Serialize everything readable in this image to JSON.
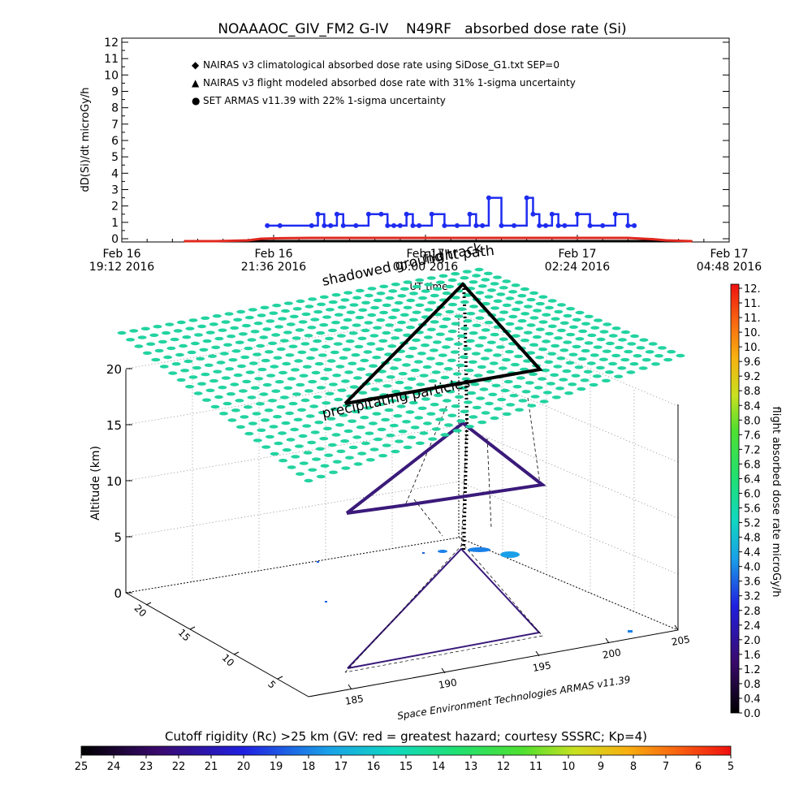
{
  "title": "NOAAAOC_GIV_FM2 G-IV    N49RF   absorbed dose rate (Si)",
  "top_chart": {
    "type": "line",
    "ylabel": "dD(Si)/dt microGy/h",
    "xlabel": "UT time",
    "ylim": [
      0,
      12
    ],
    "yticks": [
      "0",
      "1",
      "2",
      "3",
      "4",
      "5",
      "6",
      "7",
      "8",
      "9",
      "10",
      "11",
      "12"
    ],
    "xticks": [
      {
        "line1": "Feb 16",
        "line2": "19:12 2016"
      },
      {
        "line1": "Feb 16",
        "line2": "21:36 2016"
      },
      {
        "line1": "Feb 17",
        "line2": "00:00 2016"
      },
      {
        "line1": "Feb 17",
        "line2": "02:24 2016"
      },
      {
        "line1": "Feb 17",
        "line2": "04:48 2016"
      }
    ],
    "legend": [
      {
        "marker": "◆",
        "color": "#e0281e",
        "label": "NAIRAS v3 climatological absorbed dose rate using SiDose_G1.txt SEP=0"
      },
      {
        "marker": "▲",
        "color": "#000000",
        "label": "NAIRAS v3 flight modeled absorbed dose rate with 31% 1-sigma uncertainty"
      },
      {
        "marker": "●",
        "color": "#1e2cf0",
        "label": "SET ARMAS v11.39 with 22% 1-sigma uncertainty"
      }
    ]
  },
  "chart_data": [
    {
      "type": "line",
      "title": "NOAAAOC_GIV_FM2 G-IV    N49RF   absorbed dose rate (Si)",
      "xlabel": "UT time",
      "ylabel": "dD(Si)/dt microGy/h",
      "x_unit": "hours after Feb 16 19:12 2016",
      "xlim": [
        0,
        9.6
      ],
      "ylim": [
        0,
        12
      ],
      "grid": false,
      "legend_position": "top-left",
      "series": [
        {
          "name": "SET ARMAS v11.39 with 22% 1-sigma uncertainty",
          "x": [
            2.3,
            2.5,
            3.0,
            3.1,
            3.2,
            3.3,
            3.4,
            3.5,
            3.7,
            3.9,
            4.1,
            4.2,
            4.3,
            4.4,
            4.5,
            4.6,
            4.7,
            4.9,
            5.1,
            5.3,
            5.5,
            5.6,
            5.7,
            5.8,
            6.0,
            6.2,
            6.4,
            6.5,
            6.6,
            6.7,
            6.8,
            6.9,
            7.0,
            7.2,
            7.4,
            7.6,
            7.8,
            8.0,
            8.1
          ],
          "values": [
            0.8,
            0.8,
            0.8,
            1.5,
            0.8,
            0.8,
            1.5,
            0.8,
            0.8,
            1.5,
            1.5,
            0.8,
            0.8,
            0.8,
            1.5,
            0.8,
            0.8,
            1.5,
            0.8,
            0.8,
            1.5,
            0.8,
            0.8,
            2.5,
            0.8,
            0.8,
            2.5,
            1.5,
            0.8,
            0.8,
            1.5,
            0.8,
            0.8,
            1.5,
            0.8,
            0.8,
            1.5,
            0.8,
            0.8
          ]
        },
        {
          "name": "NAIRAS v3 climatological absorbed dose rate using SiDose_G1.txt SEP=0",
          "x": [
            1.0,
            1.5,
            2.0,
            2.2,
            2.5,
            3.0,
            4.0,
            5.0,
            6.0,
            7.0,
            8.0,
            8.4,
            8.6,
            9.0
          ],
          "values": [
            0,
            0,
            0.05,
            0.15,
            0.18,
            0.2,
            0.2,
            0.2,
            0.2,
            0.2,
            0.2,
            0.12,
            0.05,
            0
          ]
        },
        {
          "name": "NAIRAS v3 flight modeled absorbed dose rate with 31% 1-sigma uncertainty",
          "x": [
            1.0,
            2.0,
            4.0,
            6.0,
            8.0,
            9.0
          ],
          "values": [
            0,
            0,
            0,
            0,
            0,
            0
          ]
        }
      ]
    },
    {
      "type": "scatter",
      "title": "",
      "zlabel": "Altitude (km)",
      "zticks": [
        "0",
        "5",
        "10",
        "15",
        "20"
      ],
      "xticks": [
        "185",
        "190",
        "195",
        "200",
        "205"
      ],
      "yticks": [
        "5",
        "10",
        "15",
        "20"
      ],
      "annotations": [
        "shadowed ground track",
        "flight path",
        "precipitating particles"
      ],
      "flight_track_vertices": [
        {
          "lon": 186.5,
          "lat": 2,
          "alt": 12.5
        },
        {
          "lon": 193.5,
          "lat": 21,
          "alt": 12.5
        },
        {
          "lon": 199.0,
          "lat": 10,
          "alt": 12.5
        }
      ]
    }
  ],
  "plot3d": {
    "zlabel": "Altitude (km)",
    "zticks": [
      "0",
      "5",
      "10",
      "15",
      "20"
    ],
    "xticks": [
      "185",
      "190",
      "195",
      "200",
      "205"
    ],
    "yticks": [
      "5",
      "10",
      "15",
      "20"
    ],
    "annotations": [
      "shadowed ground track",
      "flight path",
      "precipitating particles"
    ],
    "credit": "Space Environment Technologies ARMAS v11.39"
  },
  "right_colorbar": {
    "label": "flight absorbed dose rate microGy/h",
    "ticks": [
      "12.",
      "11.",
      "11.",
      "10.",
      "10.",
      "9.6",
      "9.2",
      "8.8",
      "8.4",
      "8.0",
      "7.6",
      "7.2",
      "6.8",
      "6.4",
      "6.0",
      "5.6",
      "5.2",
      "4.8",
      "4.4",
      "4.0",
      "3.6",
      "3.2",
      "2.8",
      "2.4",
      "2.0",
      "1.6",
      "1.2",
      "0.8",
      "0.4",
      "0.0"
    ]
  },
  "bottom_colorbar": {
    "label": "Cutoff rigidity (Rc) >25 km (GV: red = greatest hazard; courtesy SSSRC; Kp=4)",
    "ticks": [
      "25",
      "24",
      "23",
      "22",
      "21",
      "20",
      "19",
      "18",
      "17",
      "16",
      "15",
      "14",
      "13",
      "12",
      "11",
      "10",
      "9",
      "8",
      "7",
      "6",
      "5"
    ]
  },
  "colors": {
    "grid_dots": "#22d3a0",
    "armas": "#1e2cf0",
    "nairas": "#e0281e",
    "track": "#000000",
    "track_low": "#3a1a7a"
  }
}
